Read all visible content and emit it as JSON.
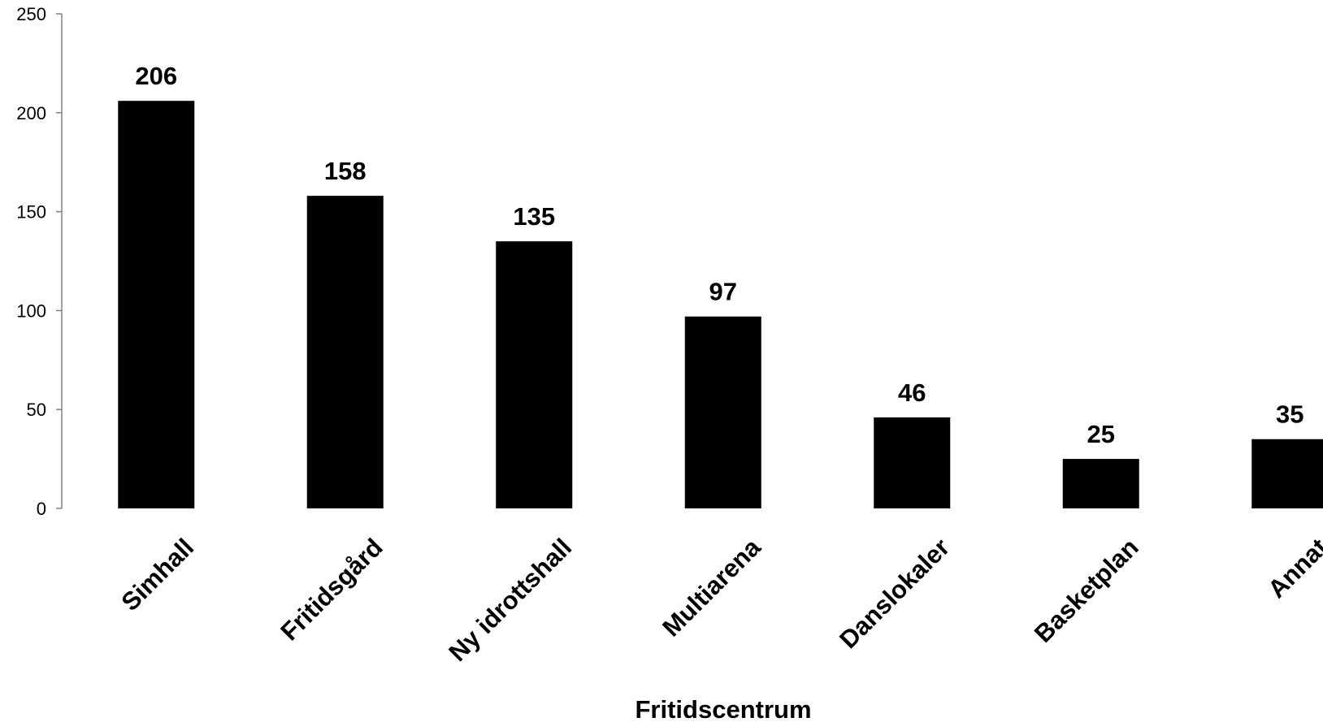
{
  "chart_data": {
    "type": "bar",
    "categories": [
      "Simhall",
      "Fritidsgård",
      "Ny idrottshall",
      "Multiarena",
      "Danslokaler",
      "Basketplan",
      "Annat"
    ],
    "values": [
      206,
      158,
      135,
      97,
      46,
      25,
      35
    ],
    "title": "",
    "xlabel": "Fritidscentrum",
    "ylabel": "",
    "ylim": [
      0,
      250
    ],
    "yticks": [
      0,
      50,
      100,
      150,
      200,
      250
    ],
    "grid": false,
    "legend": "none",
    "bar_color": "#000000",
    "data_labels": [
      "206",
      "158",
      "135",
      "97",
      "46",
      "25",
      "35"
    ]
  }
}
